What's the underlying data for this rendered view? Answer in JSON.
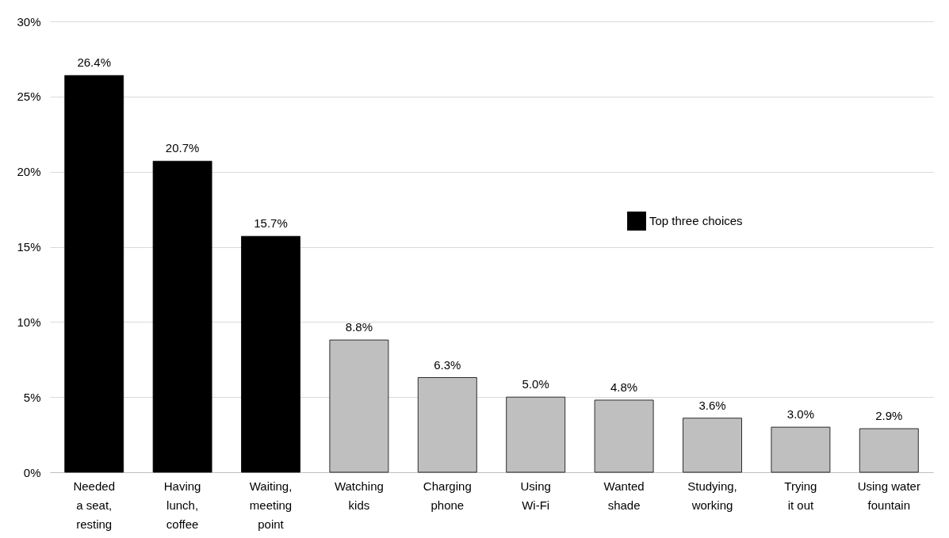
{
  "chart_data": {
    "type": "bar",
    "categories": [
      "Needed\na seat,\nresting",
      "Having\nlunch,\ncoffee",
      "Waiting,\nmeeting\npoint",
      "Watching\nkids",
      "Charging\nphone",
      "Using\nWi-Fi",
      "Wanted\nshade",
      "Studying,\nworking",
      "Trying\nit out",
      "Using water\nfountain"
    ],
    "series": [
      {
        "name": "Top three choices",
        "color": "#000000",
        "values": [
          26.4,
          20.7,
          15.7,
          null,
          null,
          null,
          null,
          null,
          null,
          null
        ],
        "value_labels": [
          "26.4%",
          "20.7%",
          "15.7%",
          null,
          null,
          null,
          null,
          null,
          null,
          null
        ]
      },
      {
        "color": "#bfbfbf",
        "values": [
          null,
          null,
          null,
          8.8,
          6.3,
          5.0,
          4.8,
          3.6,
          3.0,
          2.9
        ],
        "value_labels": [
          null,
          null,
          null,
          "8.8%",
          "6.3%",
          "5.0%",
          "4.8%",
          "3.6%",
          "3.0%",
          "2.9%"
        ]
      }
    ],
    "ylim": [
      0,
      30
    ],
    "yticks": [
      {
        "value": 0,
        "label": "0%"
      },
      {
        "value": 5,
        "label": "5%"
      },
      {
        "value": 10,
        "label": "10%"
      },
      {
        "value": 15,
        "label": "15%"
      },
      {
        "value": 20,
        "label": "20%"
      },
      {
        "value": 25,
        "label": "25%"
      },
      {
        "value": 30,
        "label": "30%"
      }
    ],
    "grid": "y",
    "legend": "top right"
  }
}
